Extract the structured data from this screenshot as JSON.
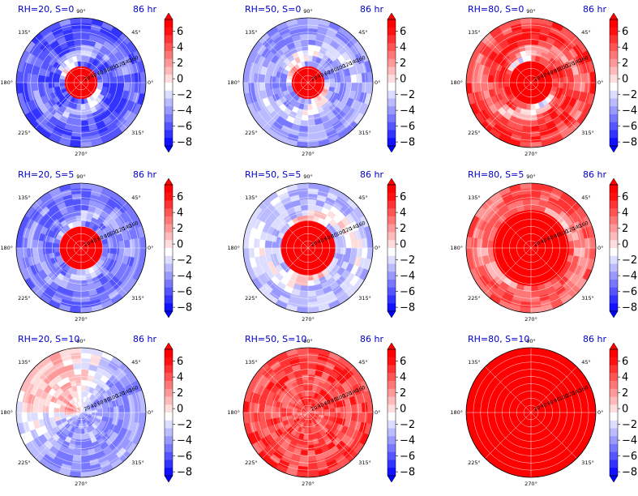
{
  "chart_data": {
    "type": "heatmap",
    "projection": "polar",
    "grid": true,
    "layout": {
      "rows": 3,
      "cols": 3
    },
    "colormap": "bwr",
    "color_levels": [
      -8,
      -7,
      -6,
      -5,
      -4,
      -3,
      -2,
      -1,
      0,
      1,
      2,
      3,
      4,
      5,
      6,
      7
    ],
    "colorbar_ticks": [
      "6",
      "4",
      "2",
      "0",
      "−2",
      "−4",
      "−6",
      "−8"
    ],
    "colorbar_range": [
      -8,
      7
    ],
    "angle_labels": [
      "90°",
      "45°",
      "0°",
      "315°",
      "270°",
      "225°",
      "180°",
      "135°"
    ],
    "radial_ticks": [
      "20",
      "40",
      "60",
      "80",
      "100",
      "120",
      "140",
      "160"
    ],
    "radial_range": [
      0,
      180
    ],
    "time_label": "86 hr",
    "panels": [
      {
        "title": "RH=20, S=0",
        "core_radius": 50,
        "outer_value": -5.5,
        "ring_value": 0.5,
        "warm_sector": 0
      },
      {
        "title": "RH=50, S=0",
        "core_radius": 45,
        "outer_value": -3.5,
        "ring_value": 2.5,
        "warm_sector": 0
      },
      {
        "title": "RH=80, S=0",
        "core_radius": 55,
        "outer_value": 5.5,
        "ring_value": -3.0,
        "warm_sector": 0
      },
      {
        "title": "RH=20, S=5",
        "core_radius": 55,
        "outer_value": -4.5,
        "ring_value": -1.0,
        "warm_sector": 0
      },
      {
        "title": "RH=50, S=5",
        "core_radius": 70,
        "outer_value": -2.5,
        "ring_value": 3.0,
        "warm_sector": 0
      },
      {
        "title": "RH=80, S=5",
        "core_radius": 100,
        "outer_value": 4.5,
        "ring_value": 1.0,
        "warm_sector": 0
      },
      {
        "title": "RH=20, S=10",
        "core_radius": 0,
        "outer_value": -3.5,
        "ring_value": -1.0,
        "warm_sector": 1.6
      },
      {
        "title": "RH=50, S=10",
        "core_radius": 0,
        "outer_value": 5.0,
        "ring_value": 3.0,
        "warm_sector": 0
      },
      {
        "title": "RH=80, S=10",
        "core_radius": 180,
        "outer_value": 7.0,
        "ring_value": 7.0,
        "warm_sector": 0
      }
    ]
  }
}
